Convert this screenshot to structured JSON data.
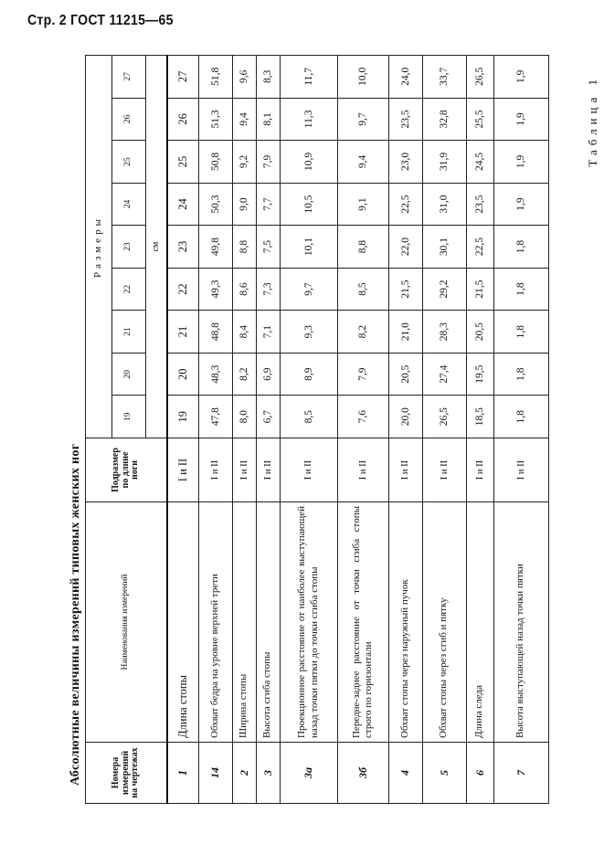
{
  "page_header": "Стр. 2 ГОСТ 11215—65",
  "table_label": "Таблица 1",
  "table_title": "Абсолютные величины измерений типовых женских ног",
  "columns": {
    "number": "Номера измерений на чертежах",
    "name": "Наименования измерений",
    "subsize": "Подразмер по длине ноги",
    "sizes_group": "Размеры",
    "sizes": [
      "19",
      "20",
      "21",
      "22",
      "23",
      "24",
      "25",
      "26",
      "27"
    ],
    "unit": "см"
  },
  "rows": [
    {
      "num": "1",
      "name": "Длина стопы",
      "subsize": "I и II",
      "values": [
        "19",
        "20",
        "21",
        "22",
        "23",
        "24",
        "25",
        "26",
        "27"
      ]
    },
    {
      "num": "14",
      "name": "Обхват бедра на уровне верхней трети",
      "subsize": "I и II",
      "values": [
        "47,8",
        "48,3",
        "48,8",
        "49,3",
        "49,8",
        "50,3",
        "50,8",
        "51,3",
        "51,8"
      ]
    },
    {
      "num": "2",
      "name": "Ширина стопы",
      "subsize": "I и II",
      "values": [
        "8,0",
        "8,2",
        "8,4",
        "8,6",
        "8,8",
        "9,0",
        "9,2",
        "9,4",
        "9,6"
      ]
    },
    {
      "num": "3",
      "name": "Высота сгиба стопы",
      "subsize": "I и II",
      "values": [
        "6,7",
        "6,9",
        "7,1",
        "7,3",
        "7,5",
        "7,7",
        "7,9",
        "8,1",
        "8,3"
      ]
    },
    {
      "num": "3а",
      "name": "Проекционное расстояние от наиболее выступающей назад точки пятки до точки сгиба стопы",
      "subsize": "I и II",
      "values": [
        "8,5",
        "8,9",
        "9,3",
        "9,7",
        "10,1",
        "10,5",
        "10,9",
        "11,3",
        "11,7"
      ]
    },
    {
      "num": "3б",
      "name": "Передне-заднее расстояние от точки сгиба стопы строго по горизонтали",
      "subsize": "I и II",
      "values": [
        "7,6",
        "7,9",
        "8,2",
        "8,5",
        "8,8",
        "9,1",
        "9,4",
        "9,7",
        "10,0"
      ]
    },
    {
      "num": "4",
      "name": "Обхват стопы через наружный пучок",
      "subsize": "I и II",
      "values": [
        "20,0",
        "20,5",
        "21,0",
        "21,5",
        "22,0",
        "22,5",
        "23,0",
        "23,5",
        "24,0"
      ]
    },
    {
      "num": "5",
      "name": "Обхват стопы через сгиб и пятку",
      "subsize": "I и II",
      "values": [
        "26,5",
        "27,4",
        "28,3",
        "29,2",
        "30,1",
        "31,0",
        "31,9",
        "32,8",
        "33,7"
      ]
    },
    {
      "num": "6",
      "name": "Длина следа",
      "subsize": "I и II",
      "values": [
        "18,5",
        "19,5",
        "20,5",
        "21,5",
        "22,5",
        "23,5",
        "24,5",
        "25,5",
        "26,5"
      ]
    },
    {
      "num": "7",
      "name": "Высота выступающей назад точки пятки",
      "subsize": "I и II",
      "values": [
        "1,8",
        "1,8",
        "1,8",
        "1,8",
        "1,8",
        "1,9",
        "1,9",
        "1,9",
        "1,9"
      ]
    }
  ]
}
